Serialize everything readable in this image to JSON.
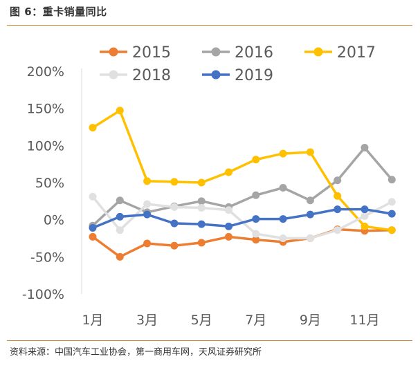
{
  "figure": {
    "title": "图 6：重卡销量同比",
    "source": "资料来源：中国汽车工业协会，第一商用车网，天风证券研究所"
  },
  "chart_data": {
    "type": "line",
    "title": "重卡销量同比",
    "xlabel": "",
    "ylabel": "",
    "categories": [
      "1月",
      "2月",
      "3月",
      "4月",
      "5月",
      "6月",
      "7月",
      "8月",
      "9月",
      "10月",
      "11月",
      "12月"
    ],
    "x_tick_labels": [
      "1月",
      "3月",
      "5月",
      "7月",
      "9月",
      "11月"
    ],
    "y_tick_labels": [
      "200%",
      "150%",
      "100%",
      "50%",
      "0%",
      "-50%",
      "-100%"
    ],
    "y_ticks": [
      200,
      150,
      100,
      50,
      0,
      -50,
      -100
    ],
    "ylim": [
      -100,
      200
    ],
    "y_unit": "%",
    "grid": false,
    "legend_position": "top",
    "series": [
      {
        "name": "2015",
        "color": "#ed7d31",
        "values": [
          -23,
          -50,
          -32,
          -35,
          -31,
          -23,
          -27,
          -30,
          -25,
          -13,
          -15,
          -14
        ]
      },
      {
        "name": "2016",
        "color": "#a5a5a5",
        "values": [
          -8,
          26,
          10,
          18,
          25,
          17,
          33,
          43,
          26,
          53,
          97,
          54
        ]
      },
      {
        "name": "2017",
        "color": "#ffc000",
        "values": [
          124,
          147,
          52,
          51,
          50,
          64,
          81,
          89,
          91,
          32,
          -9,
          -14
        ]
      },
      {
        "name": "2018",
        "color": "#e0e0e0",
        "values": [
          31,
          -14,
          21,
          17,
          16,
          13,
          -19,
          -25,
          -25,
          -14,
          5,
          24
        ]
      },
      {
        "name": "2019",
        "color": "#4472c4",
        "values": [
          -11,
          4,
          7,
          -5,
          -6,
          -9,
          1,
          1,
          7,
          14,
          14,
          8
        ]
      }
    ]
  }
}
